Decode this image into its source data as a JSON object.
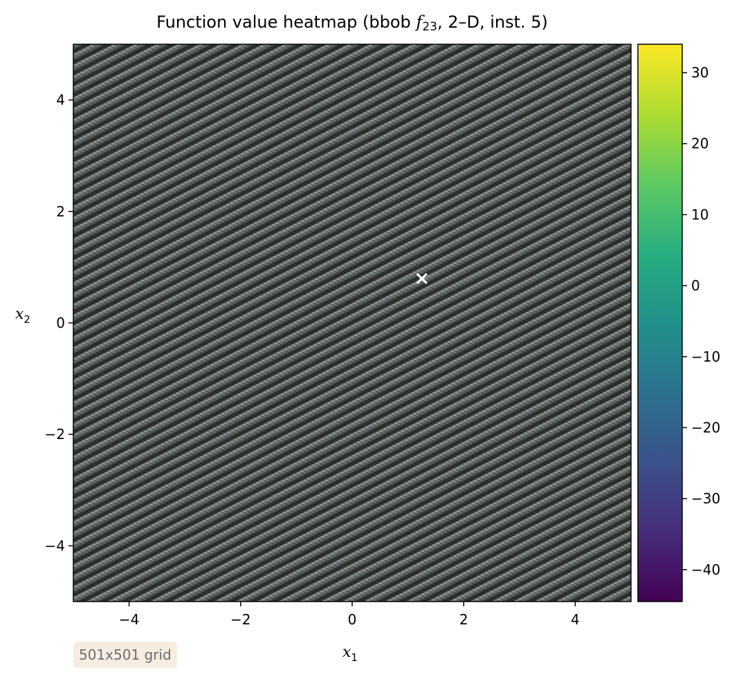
{
  "chart_data": {
    "type": "heatmap",
    "title_prefix": "Function value heatmap (bbob ",
    "title_func": "f",
    "title_sub": "23",
    "title_suffix": ", 2–D, inst. 5)",
    "xlabel": "x",
    "xlabel_sub": "1",
    "ylabel": "x",
    "ylabel_sub": "2",
    "xlim": [
      -5,
      5
    ],
    "ylim": [
      -5,
      5
    ],
    "xticks": [
      -4,
      -2,
      0,
      2,
      4
    ],
    "yticks": [
      -4,
      -2,
      0,
      2,
      4
    ],
    "colorbar": {
      "range": [
        -44.5,
        34
      ],
      "ticks": [
        -40,
        -30,
        -20,
        -10,
        0,
        10,
        20,
        30
      ],
      "colormap": "viridis"
    },
    "optimum_marker": {
      "x": 1.25,
      "y": 0.8,
      "symbol": "×",
      "color": "#ffffff"
    },
    "pattern": {
      "description_colors": {
        "dark": "#2c2f2b",
        "mid": "#555a56",
        "light": "#8f9391",
        "tint": "#6f8a99"
      }
    },
    "grid_annotation": "501x501 grid"
  }
}
